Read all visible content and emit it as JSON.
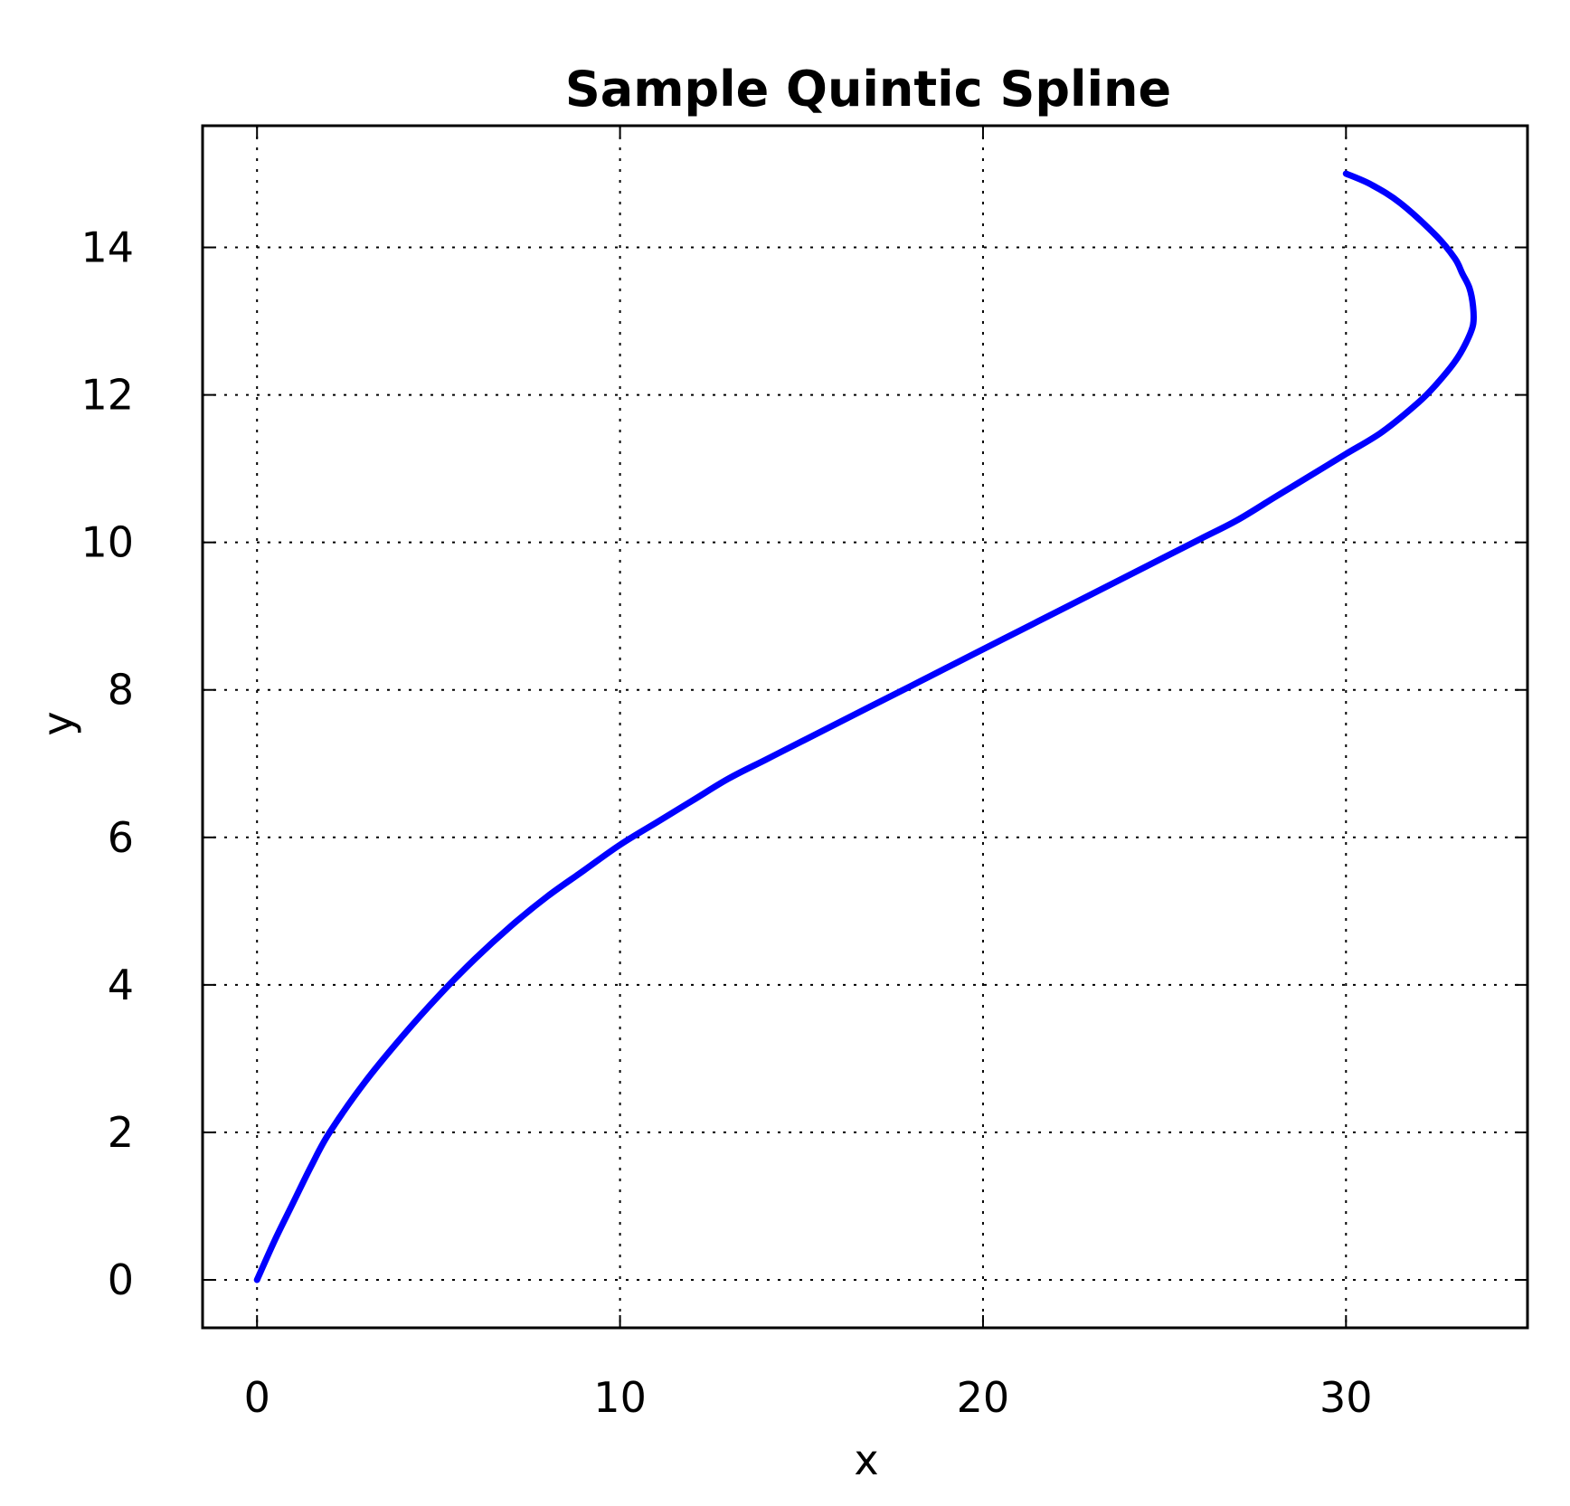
{
  "chart_data": {
    "type": "line",
    "title": "Sample Quintic Spline",
    "xlabel": "x",
    "ylabel": "y",
    "xlim": [
      -1.5,
      35
    ],
    "ylim": [
      -0.65,
      15.65
    ],
    "xticks": [
      0,
      10,
      20,
      30
    ],
    "yticks": [
      0,
      2,
      4,
      6,
      8,
      10,
      12,
      14
    ],
    "grid": true,
    "line_color": "#0000ff",
    "series": [
      {
        "x": [
          0,
          0.5,
          1,
          1.5,
          2,
          3,
          4,
          5,
          6,
          7,
          8,
          9,
          10,
          11,
          12,
          13,
          14,
          15,
          16,
          17,
          18,
          19,
          20,
          21,
          22,
          23,
          24,
          25,
          26,
          27,
          28,
          29,
          30,
          31,
          32,
          32.5,
          33,
          33.3,
          33.5,
          33.5,
          33.4,
          33.2,
          33,
          32.5,
          31.5,
          30.7,
          30
        ],
        "y": [
          0,
          0.55,
          1.05,
          1.55,
          2.0,
          2.7,
          3.3,
          3.85,
          4.35,
          4.8,
          5.2,
          5.55,
          5.9,
          6.2,
          6.5,
          6.8,
          7.05,
          7.3,
          7.55,
          7.8,
          8.05,
          8.3,
          8.55,
          8.8,
          9.05,
          9.3,
          9.55,
          9.8,
          10.05,
          10.3,
          10.6,
          10.9,
          11.2,
          11.5,
          11.9,
          12.15,
          12.45,
          12.7,
          12.95,
          13.2,
          13.45,
          13.65,
          13.85,
          14.15,
          14.6,
          14.85,
          15.0
        ]
      }
    ]
  }
}
